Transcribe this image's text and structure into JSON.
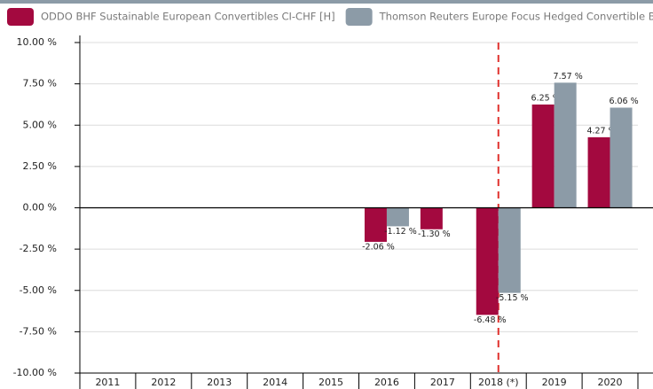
{
  "chart_data": {
    "type": "bar",
    "categories": [
      "2011",
      "2012",
      "2013",
      "2014",
      "2015",
      "2016",
      "2017",
      "2018 (*)",
      "2019",
      "2020"
    ],
    "series": [
      {
        "name": "ODDO BHF Sustainable European Convertibles CI-CHF [H]",
        "color": "#a3093f",
        "values": [
          null,
          null,
          null,
          null,
          null,
          -2.06,
          -1.3,
          -6.48,
          6.25,
          4.27
        ],
        "value_labels": [
          null,
          null,
          null,
          null,
          null,
          "-2.06 %",
          "-1.30 %",
          "-6.48 %",
          "6.25 %",
          "4.27 %"
        ]
      },
      {
        "name": "Thomson Reuters Europe Focus Hedged Convertible Bo",
        "color": "#8c9ba7",
        "values": [
          null,
          null,
          null,
          null,
          null,
          -1.12,
          null,
          -5.15,
          7.57,
          6.06
        ],
        "value_labels": [
          null,
          null,
          null,
          null,
          null,
          "-1.12 %",
          null,
          "-5.15 %",
          "7.57 %",
          "6.06 %"
        ]
      }
    ],
    "ylim": [
      -10,
      10
    ],
    "yticks": [
      {
        "value": -10,
        "label": "-10.00 %"
      },
      {
        "value": -7.5,
        "label": "-7.50 %"
      },
      {
        "value": -5,
        "label": "-5.00 %"
      },
      {
        "value": -2.5,
        "label": "-2.50 %"
      },
      {
        "value": 0,
        "label": "0.00 %"
      },
      {
        "value": 2.5,
        "label": "2.50 %"
      },
      {
        "value": 5,
        "label": "5.00 %"
      },
      {
        "value": 7.5,
        "label": "7.50 %"
      },
      {
        "value": 10,
        "label": "10.00 %"
      }
    ],
    "grid": true
  }
}
